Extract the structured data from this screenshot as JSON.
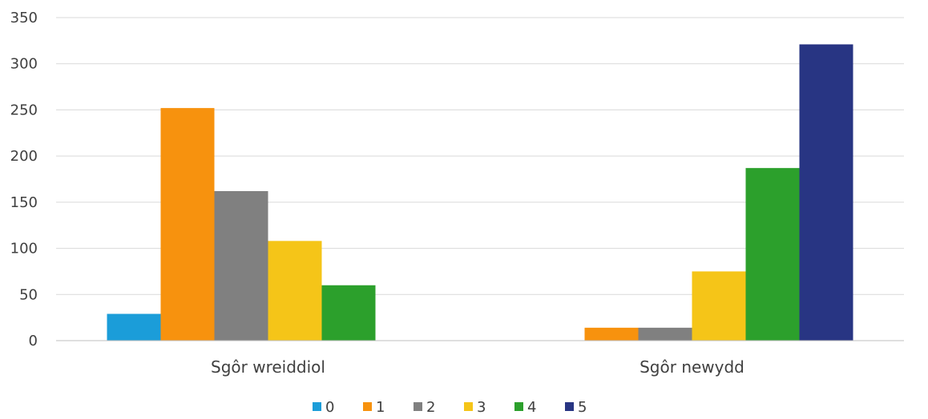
{
  "chart_data": {
    "type": "bar",
    "title": "",
    "xlabel": "",
    "ylabel": "",
    "categories": [
      "Sgôr wreiddiol",
      "Sgôr newydd"
    ],
    "ylim": [
      0,
      350
    ],
    "yticks": [
      0,
      50,
      100,
      150,
      200,
      250,
      300,
      350
    ],
    "grid": true,
    "legend_position": "bottom",
    "series": [
      {
        "name": "0",
        "color": "#1B9DD9",
        "values": [
          29,
          0
        ]
      },
      {
        "name": "1",
        "color": "#F7920E",
        "values": [
          252,
          14
        ]
      },
      {
        "name": "2",
        "color": "#808080",
        "values": [
          162,
          14
        ]
      },
      {
        "name": "3",
        "color": "#F5C518",
        "values": [
          108,
          75
        ]
      },
      {
        "name": "4",
        "color": "#2CA02C",
        "values": [
          60,
          187
        ]
      },
      {
        "name": "5",
        "color": "#283583",
        "values": [
          0,
          321
        ]
      }
    ]
  }
}
